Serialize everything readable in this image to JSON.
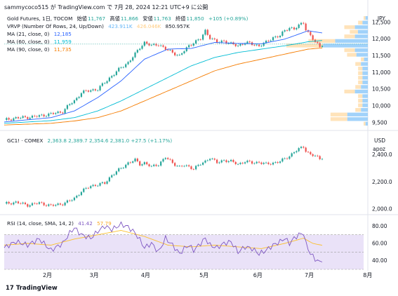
{
  "header": {
    "text": "sammycoco515 が TradingView.com で 7月 28, 2024 12:21 UTC+9 に公開"
  },
  "pane1": {
    "currency": "JPY",
    "title": "Gold Futures, 1日, TOCOM",
    "ohlc_labels": {
      "o": "始値",
      "h": "高値",
      "l": "安値",
      "c": "終値"
    },
    "ohlc": {
      "o": "11,767",
      "h": "11,866",
      "l": "11,763",
      "c": "11,850",
      "chg": "+105 (+0.89%)"
    },
    "vrvp": {
      "label": "VRVP (Number Of Rows, 24, Up/Down)",
      "v1": "423.911K",
      "v2": "426.046K",
      "v3": "850.957K"
    },
    "ma21": {
      "label": "MA (21, close, 0)",
      "value": "12,185",
      "color": "#2962ff"
    },
    "ma60": {
      "label": "MA (60, close, 0)",
      "value": "11,959",
      "color": "#00bcd4"
    },
    "ma90": {
      "label": "MA (90, close, 0)",
      "value": "11,735",
      "color": "#f57c00"
    },
    "y_ticks": [
      "12,500",
      "12,000",
      "11,500",
      "11,000",
      "10,500",
      "10,000",
      "9,500"
    ],
    "last_price": "11,850"
  },
  "pane2": {
    "title": "GC1! · COMEX",
    "values": "2,363.8  2,389.7  2,354.6  2,381.0  +27.5 (+1.17%)",
    "currency": "USD",
    "unit": "apoz",
    "y_ticks": [
      "2,400.0",
      "2,200.0",
      "2,000.0"
    ]
  },
  "pane3": {
    "label": "RSI (14, close, SMA, 14, 2)",
    "value1": "41.42",
    "value2": "57.79",
    "y_ticks": [
      "80.00",
      "60.00",
      "40.00"
    ]
  },
  "x_axis": {
    "ticks": [
      "2月",
      "3月",
      "4月",
      "5月",
      "6月",
      "7月",
      "8月"
    ]
  },
  "footer": {
    "brand": "TradingView"
  },
  "colors": {
    "up": "#26a69a",
    "down": "#ef5350",
    "rsi": "#7e57c2",
    "rsi_ma": "#fbc02d",
    "rsi_band": "#e1d5f5",
    "vrvp_up": "#90caf9",
    "vrvp_down": "#ffe0b2"
  },
  "chart_data": [
    {
      "type": "candlestick",
      "title": "Gold Futures, 1日, TOCOM",
      "ylim": [
        9350,
        12750
      ],
      "series": [
        {
          "name": "Gold Futures",
          "close_points": [
            [
              0,
              9580
            ],
            [
              5,
              9640
            ],
            [
              10,
              9660
            ],
            [
              15,
              9700
            ],
            [
              20,
              9760
            ],
            [
              25,
              9830
            ],
            [
              28,
              10050
            ],
            [
              30,
              10150
            ],
            [
              33,
              10400
            ],
            [
              37,
              10470
            ],
            [
              40,
              10500
            ],
            [
              43,
              10700
            ],
            [
              46,
              10900
            ],
            [
              50,
              11150
            ],
            [
              53,
              11300
            ],
            [
              56,
              11550
            ],
            [
              58,
              11750
            ],
            [
              60,
              11900
            ],
            [
              63,
              11800
            ],
            [
              66,
              11850
            ],
            [
              69,
              11700
            ],
            [
              72,
              11600
            ],
            [
              75,
              11500
            ],
            [
              77,
              11650
            ],
            [
              79,
              11800
            ],
            [
              81,
              11900
            ],
            [
              84,
              12000
            ],
            [
              86,
              12250
            ],
            [
              88,
              12050
            ],
            [
              91,
              11900
            ],
            [
              94,
              11950
            ],
            [
              97,
              11850
            ],
            [
              100,
              11800
            ],
            [
              103,
              11900
            ],
            [
              106,
              11850
            ],
            [
              109,
              11800
            ],
            [
              112,
              11900
            ],
            [
              115,
              12050
            ],
            [
              118,
              12100
            ],
            [
              120,
              12250
            ],
            [
              122,
              12350
            ],
            [
              124,
              12300
            ],
            [
              126,
              12400
            ],
            [
              128,
              12500
            ],
            [
              129,
              12300
            ],
            [
              131,
              12100
            ],
            [
              133,
              11900
            ],
            [
              135,
              11780
            ],
            [
              136,
              11850
            ]
          ]
        },
        {
          "name": "MA (21, close, 0)",
          "points": [
            [
              0,
              9520
            ],
            [
              20,
              9650
            ],
            [
              30,
              9850
            ],
            [
              40,
              10250
            ],
            [
              50,
              10750
            ],
            [
              60,
              11400
            ],
            [
              70,
              11700
            ],
            [
              80,
              11720
            ],
            [
              90,
              11900
            ],
            [
              100,
              11870
            ],
            [
              110,
              11860
            ],
            [
              120,
              12000
            ],
            [
              130,
              12250
            ],
            [
              136,
              12185
            ]
          ]
        },
        {
          "name": "MA (60, close, 0)",
          "points": [
            [
              0,
              9480
            ],
            [
              20,
              9560
            ],
            [
              30,
              9650
            ],
            [
              40,
              9850
            ],
            [
              50,
              10150
            ],
            [
              60,
              10500
            ],
            [
              70,
              10850
            ],
            [
              80,
              11200
            ],
            [
              90,
              11450
            ],
            [
              100,
              11600
            ],
            [
              110,
              11700
            ],
            [
              120,
              11800
            ],
            [
              130,
              11920
            ],
            [
              136,
              11959
            ]
          ]
        },
        {
          "name": "MA (90, close, 0)",
          "points": [
            [
              0,
              9430
            ],
            [
              20,
              9480
            ],
            [
              30,
              9550
            ],
            [
              40,
              9650
            ],
            [
              50,
              9850
            ],
            [
              60,
              10150
            ],
            [
              70,
              10450
            ],
            [
              80,
              10750
            ],
            [
              90,
              11050
            ],
            [
              100,
              11250
            ],
            [
              110,
              11400
            ],
            [
              120,
              11550
            ],
            [
              130,
              11700
            ],
            [
              136,
              11735
            ]
          ]
        }
      ]
    },
    {
      "type": "candlestick",
      "title": "GC1! · COMEX",
      "ylim": [
        1980,
        2480
      ],
      "series": [
        {
          "name": "GC1!",
          "close_points": [
            [
              0,
              2040
            ],
            [
              5,
              2050
            ],
            [
              10,
              2030
            ],
            [
              15,
              2045
            ],
            [
              20,
              2025
            ],
            [
              25,
              2040
            ],
            [
              28,
              2060
            ],
            [
              30,
              2080
            ],
            [
              33,
              2130
            ],
            [
              37,
              2170
            ],
            [
              40,
              2180
            ],
            [
              43,
              2190
            ],
            [
              46,
              2250
            ],
            [
              50,
              2300
            ],
            [
              53,
              2340
            ],
            [
              56,
              2360
            ],
            [
              58,
              2330
            ],
            [
              60,
              2340
            ],
            [
              63,
              2310
            ],
            [
              66,
              2330
            ],
            [
              69,
              2380
            ],
            [
              72,
              2340
            ],
            [
              75,
              2310
            ],
            [
              77,
              2320
            ],
            [
              79,
              2310
            ],
            [
              81,
              2300
            ],
            [
              84,
              2330
            ],
            [
              86,
              2350
            ],
            [
              88,
              2380
            ],
            [
              91,
              2340
            ],
            [
              94,
              2360
            ],
            [
              97,
              2350
            ],
            [
              100,
              2330
            ],
            [
              103,
              2350
            ],
            [
              106,
              2340
            ],
            [
              109,
              2345
            ],
            [
              112,
              2330
            ],
            [
              115,
              2340
            ],
            [
              118,
              2350
            ],
            [
              120,
              2370
            ],
            [
              122,
              2390
            ],
            [
              124,
              2420
            ],
            [
              126,
              2440
            ],
            [
              128,
              2460
            ],
            [
              129,
              2430
            ],
            [
              131,
              2400
            ],
            [
              133,
              2390
            ],
            [
              135,
              2370
            ],
            [
              136,
              2381
            ]
          ]
        }
      ]
    },
    {
      "type": "line",
      "title": "RSI (14, close, SMA, 14, 2)",
      "ylim": [
        30,
        90
      ],
      "series": [
        {
          "name": "RSI",
          "points": [
            [
              0,
              55
            ],
            [
              5,
              62
            ],
            [
              10,
              58
            ],
            [
              15,
              65
            ],
            [
              20,
              52
            ],
            [
              25,
              60
            ],
            [
              28,
              72
            ],
            [
              30,
              78
            ],
            [
              33,
              70
            ],
            [
              37,
              66
            ],
            [
              40,
              74
            ],
            [
              43,
              80
            ],
            [
              46,
              76
            ],
            [
              50,
              82
            ],
            [
              53,
              79
            ],
            [
              56,
              72
            ],
            [
              58,
              64
            ],
            [
              60,
              55
            ],
            [
              63,
              60
            ],
            [
              66,
              50
            ],
            [
              69,
              66
            ],
            [
              72,
              58
            ],
            [
              75,
              48
            ],
            [
              77,
              54
            ],
            [
              79,
              58
            ],
            [
              81,
              52
            ],
            [
              84,
              60
            ],
            [
              86,
              66
            ],
            [
              88,
              58
            ],
            [
              91,
              55
            ],
            [
              94,
              60
            ],
            [
              97,
              62
            ],
            [
              100,
              50
            ],
            [
              103,
              56
            ],
            [
              106,
              54
            ],
            [
              109,
              48
            ],
            [
              112,
              52
            ],
            [
              115,
              58
            ],
            [
              118,
              62
            ],
            [
              120,
              66
            ],
            [
              122,
              60
            ],
            [
              124,
              66
            ],
            [
              126,
              70
            ],
            [
              128,
              72
            ],
            [
              129,
              60
            ],
            [
              131,
              48
            ],
            [
              133,
              42
            ],
            [
              135,
              38
            ],
            [
              136,
              41.42
            ]
          ]
        },
        {
          "name": "MA",
          "points": [
            [
              0,
              58
            ],
            [
              10,
              60
            ],
            [
              20,
              58
            ],
            [
              30,
              65
            ],
            [
              40,
              70
            ],
            [
              50,
              75
            ],
            [
              60,
              68
            ],
            [
              70,
              58
            ],
            [
              80,
              56
            ],
            [
              90,
              58
            ],
            [
              100,
              56
            ],
            [
              110,
              54
            ],
            [
              120,
              60
            ],
            [
              128,
              66
            ],
            [
              132,
              60
            ],
            [
              136,
              57.79
            ]
          ]
        }
      ]
    }
  ]
}
